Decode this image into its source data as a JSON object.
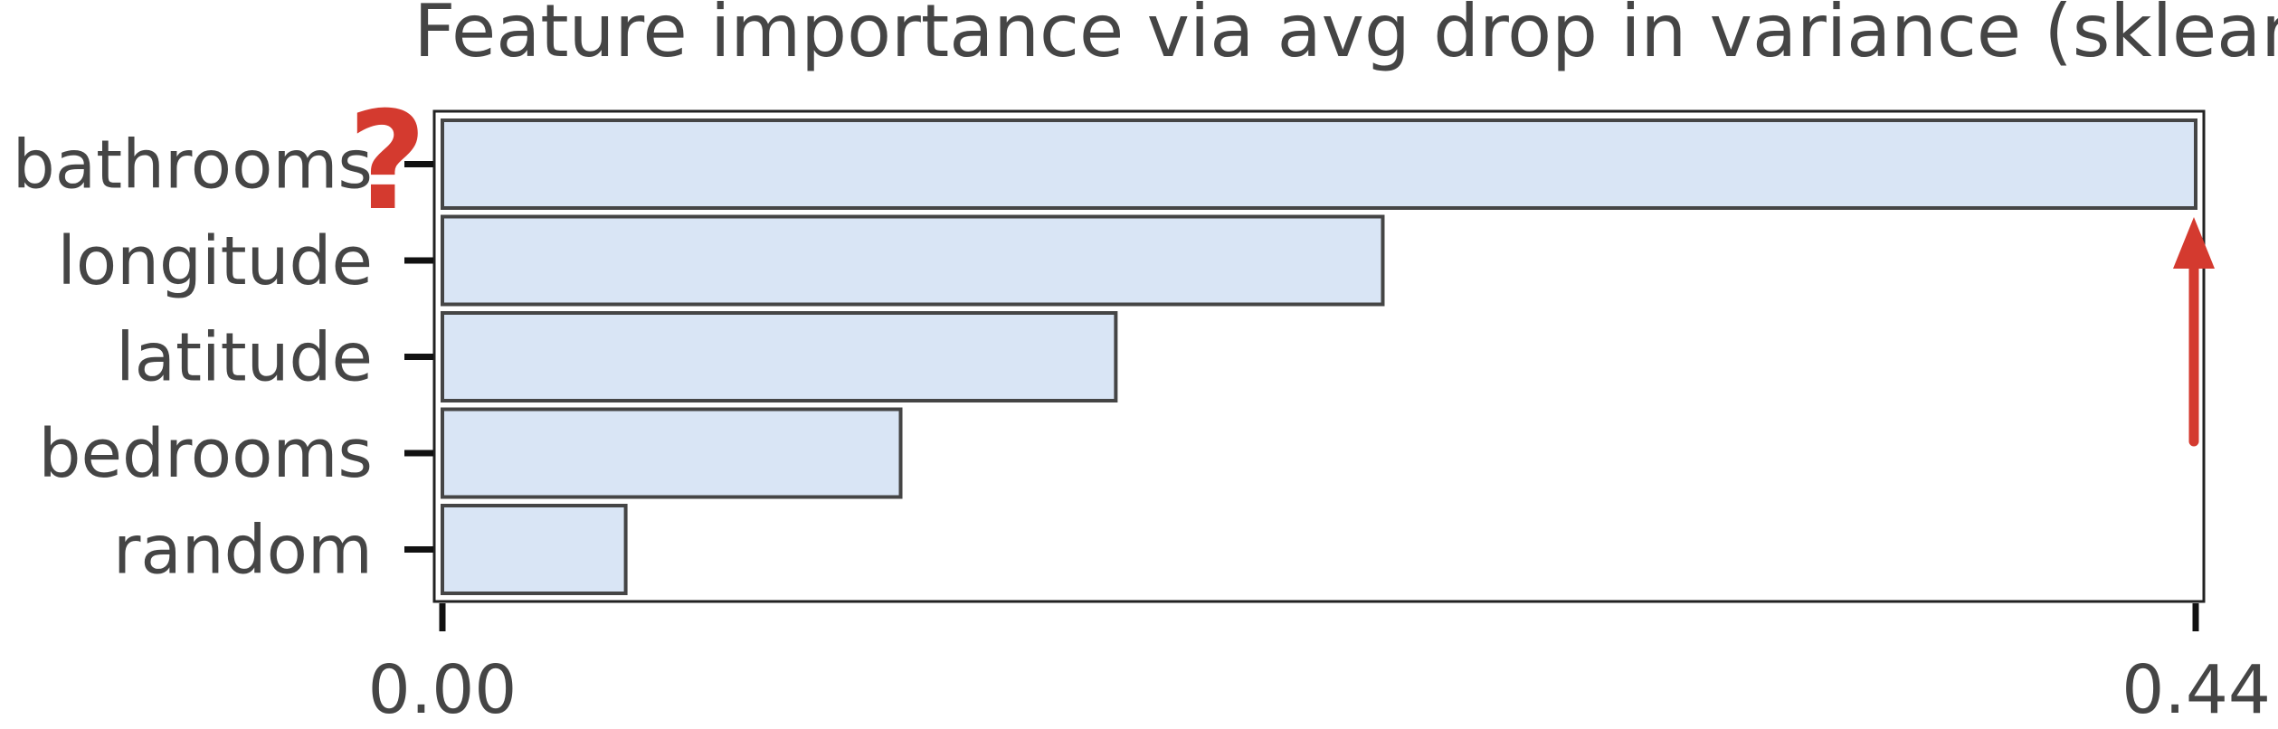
{
  "chart_data": {
    "type": "bar",
    "orientation": "horizontal",
    "title": "Feature importance via avg drop in variance (sklearn)",
    "categories": [
      "bathrooms",
      "longitude",
      "latitude",
      "bedrooms",
      "random"
    ],
    "values": [
      0.44,
      0.236,
      0.169,
      0.115,
      0.046
    ],
    "xlim": [
      0,
      0.44
    ],
    "xticks": [
      "0.00",
      "0.44"
    ],
    "grid": false,
    "annotations": [
      {
        "type": "question-mark",
        "text": "?",
        "near": "bathrooms",
        "color": "#d43a2f"
      },
      {
        "type": "up-arrow",
        "color": "#d43a2f"
      }
    ]
  },
  "colors": {
    "bar_fill": "#d9e5f5",
    "bar_edge": "#454545",
    "text": "#454545",
    "annotation": "#d43a2f"
  }
}
